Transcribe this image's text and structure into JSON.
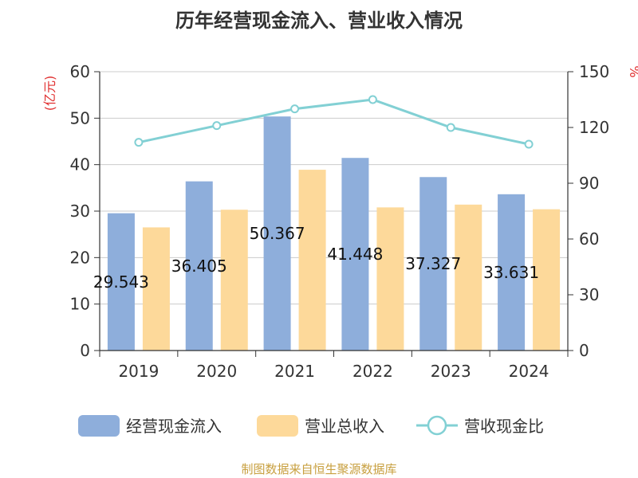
{
  "title": "历年经营现金流入、营业收入情况",
  "source": "制图数据来自恒生聚源数据库",
  "chart_data": {
    "type": "bar",
    "categories": [
      "2019",
      "2020",
      "2021",
      "2022",
      "2023",
      "2024"
    ],
    "series": [
      {
        "name": "经营现金流入",
        "type": "bar",
        "axis": "left",
        "color": "#8eaedb",
        "values": [
          29.543,
          36.405,
          50.367,
          41.448,
          37.327,
          33.631
        ],
        "data_labels": [
          "29.543",
          "36.405",
          "50.367",
          "41.448",
          "37.327",
          "33.631"
        ]
      },
      {
        "name": "营业总收入",
        "type": "bar",
        "axis": "left",
        "color": "#fdd99a",
        "values": [
          26.5,
          30.3,
          38.9,
          30.8,
          31.4,
          30.4
        ]
      },
      {
        "name": "营收现金比",
        "type": "line",
        "axis": "right",
        "color": "#82d0d4",
        "values": [
          112,
          121,
          130,
          135,
          120,
          111
        ]
      }
    ],
    "y_left": {
      "label": "(亿元)",
      "ticks": [
        "0",
        "10",
        "20",
        "30",
        "40",
        "50",
        "60"
      ],
      "min": 0,
      "max": 60
    },
    "y_right": {
      "label": "%",
      "ticks": [
        "0",
        "30",
        "60",
        "90",
        "120",
        "150"
      ],
      "min": 0,
      "max": 150
    },
    "grid": true,
    "legend_position": "bottom"
  }
}
